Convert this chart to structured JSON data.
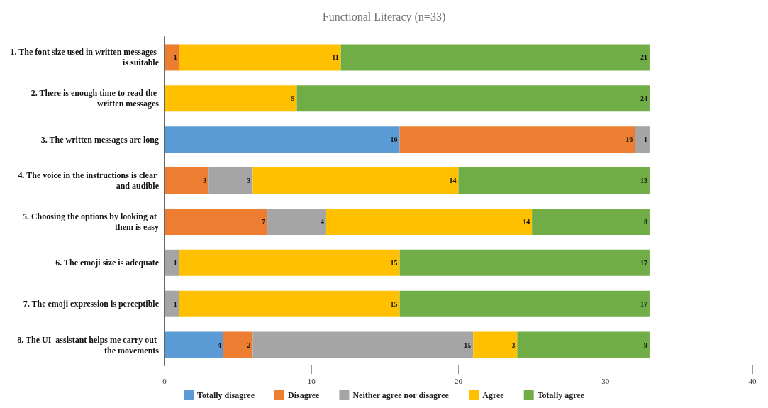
{
  "chart_data": {
    "type": "bar",
    "title": "Functional Literacy (n=33)",
    "orientation": "horizontal",
    "stacked": true,
    "data_labels": true,
    "grid": false,
    "legend": "bottom",
    "categories": [
      "1. The font size used in written messages is suitable",
      "2. There is enough time to read the written messages",
      "3. The written messages are long",
      "4. The voice in the instructions is clear and audible",
      "5. Choosing the options by looking at them is easy",
      "6. The emoji size is adequate",
      "7. The emoji expression is perceptible",
      "8. The UI  assistant helps me carry out the movements"
    ],
    "xlim": [
      0,
      40
    ],
    "xticks": [
      0,
      10,
      20,
      30,
      40
    ],
    "series": [
      {
        "name": "Totally disagree",
        "color": "#5b9bd5",
        "values": [
          null,
          null,
          16,
          null,
          null,
          null,
          null,
          4
        ]
      },
      {
        "name": "Disagree",
        "color": "#ed7d31",
        "values": [
          1,
          null,
          16,
          3,
          7,
          null,
          null,
          2
        ]
      },
      {
        "name": "Neither agree nor disagree",
        "color": "#a5a5a5",
        "values": [
          null,
          null,
          1,
          3,
          4,
          1,
          1,
          15
        ]
      },
      {
        "name": "Agree",
        "color": "#ffc000",
        "values": [
          11,
          9,
          null,
          14,
          14,
          15,
          15,
          3
        ]
      },
      {
        "name": "Totally agree",
        "color": "#70ad47",
        "values": [
          21,
          24,
          null,
          13,
          8,
          17,
          17,
          9
        ]
      }
    ]
  }
}
